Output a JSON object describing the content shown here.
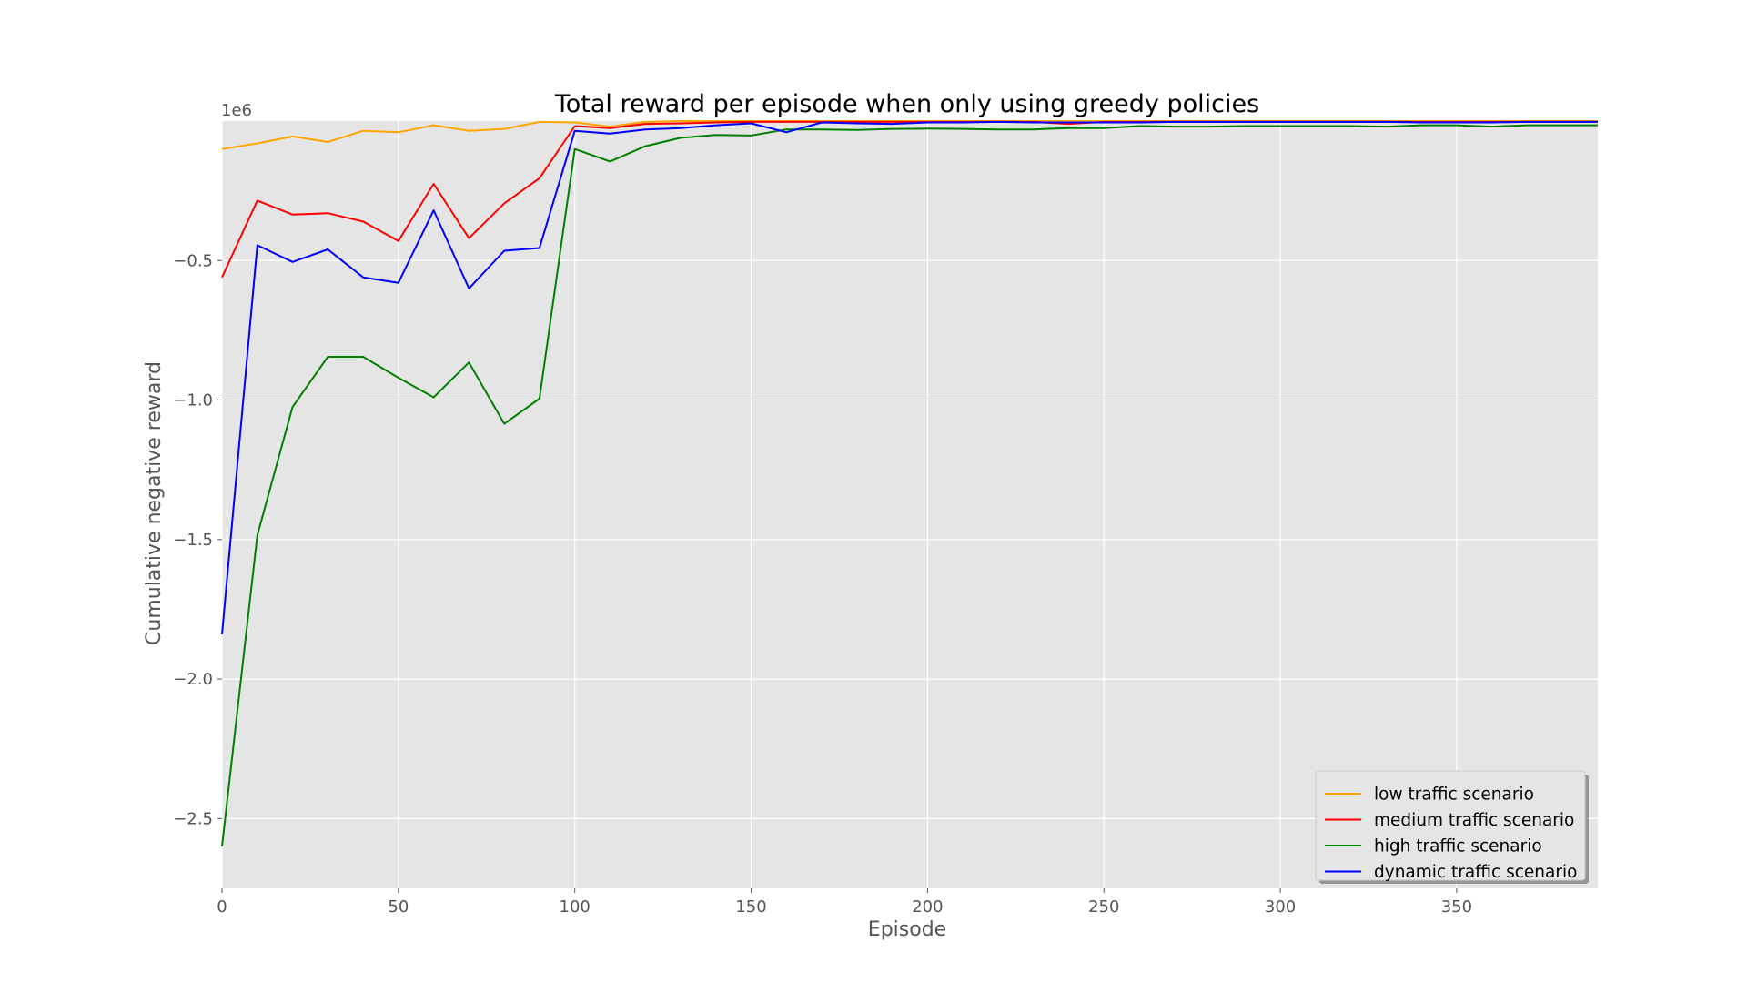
{
  "chart_data": {
    "type": "line",
    "title": "Total reward per episode when only using greedy policies",
    "xlabel": "Episode",
    "ylabel": "Cumulative negative reward",
    "y_offset_text": "1e6",
    "xlim": [
      0,
      390
    ],
    "ylim": [
      -2.75,
      0
    ],
    "xticks": [
      0,
      50,
      100,
      150,
      200,
      250,
      300,
      350
    ],
    "yticks": [
      -2.5,
      -2.0,
      -1.5,
      -1.0,
      -0.5
    ],
    "xtick_labels": [
      "0",
      "50",
      "100",
      "150",
      "200",
      "250",
      "300",
      "350"
    ],
    "ytick_labels": [
      "−2.5",
      "−2.0",
      "−1.5",
      "−1.0",
      "−0.5"
    ],
    "grid": true,
    "background": "#e5e5e5",
    "legend_position": "lower-right",
    "x": [
      0,
      10,
      20,
      30,
      40,
      50,
      60,
      70,
      80,
      90,
      100,
      110,
      120,
      130,
      140,
      150,
      160,
      170,
      180,
      190,
      200,
      210,
      220,
      230,
      240,
      250,
      260,
      270,
      280,
      290,
      300,
      310,
      320,
      330,
      340,
      350,
      360,
      370,
      380,
      390
    ],
    "series": [
      {
        "name": "low traffic scenario",
        "color": "#ffa500",
        "values": [
          -0.1,
          -0.08,
          -0.055,
          -0.075,
          -0.035,
          -0.04,
          -0.015,
          -0.035,
          -0.028,
          -0.003,
          -0.005,
          -0.02,
          -0.003,
          0,
          0,
          0,
          0,
          0,
          0,
          0,
          0,
          0,
          0,
          0,
          0,
          0,
          0,
          0,
          0,
          0,
          0,
          0,
          0,
          0,
          0,
          0,
          0,
          0,
          0,
          0
        ]
      },
      {
        "name": "medium traffic scenario",
        "color": "#ff0000",
        "values": [
          -0.56,
          -0.285,
          -0.335,
          -0.33,
          -0.36,
          -0.43,
          -0.225,
          -0.42,
          -0.295,
          -0.205,
          -0.018,
          -0.025,
          -0.01,
          -0.008,
          -0.005,
          -0.003,
          -0.003,
          -0.003,
          -0.003,
          -0.003,
          -0.003,
          -0.003,
          -0.003,
          -0.003,
          -0.01,
          -0.003,
          -0.003,
          -0.003,
          -0.003,
          -0.003,
          -0.003,
          -0.003,
          -0.003,
          -0.003,
          -0.003,
          -0.003,
          -0.003,
          -0.003,
          -0.003,
          -0.003
        ]
      },
      {
        "name": "high traffic scenario",
        "color": "#008000",
        "values": [
          -2.6,
          -1.485,
          -1.025,
          -0.845,
          -0.845,
          -0.92,
          -0.99,
          -0.865,
          -1.085,
          -0.995,
          -0.1,
          -0.145,
          -0.09,
          -0.06,
          -0.05,
          -0.052,
          -0.03,
          -0.03,
          -0.032,
          -0.028,
          -0.027,
          -0.028,
          -0.03,
          -0.03,
          -0.025,
          -0.025,
          -0.018,
          -0.02,
          -0.02,
          -0.018,
          -0.018,
          -0.018,
          -0.018,
          -0.02,
          -0.015,
          -0.015,
          -0.02,
          -0.015,
          -0.015,
          -0.015
        ]
      },
      {
        "name": "dynamic traffic scenario",
        "color": "#0000ff",
        "values": [
          -1.84,
          -0.445,
          -0.505,
          -0.46,
          -0.56,
          -0.58,
          -0.32,
          -0.6,
          -0.465,
          -0.455,
          -0.035,
          -0.045,
          -0.03,
          -0.025,
          -0.015,
          -0.008,
          -0.04,
          -0.005,
          -0.008,
          -0.01,
          -0.005,
          -0.005,
          -0.003,
          -0.005,
          -0.005,
          -0.005,
          -0.005,
          -0.003,
          -0.003,
          -0.003,
          -0.003,
          -0.003,
          -0.003,
          -0.003,
          -0.005,
          -0.005,
          -0.005,
          -0.003,
          -0.003,
          -0.003
        ]
      }
    ]
  }
}
